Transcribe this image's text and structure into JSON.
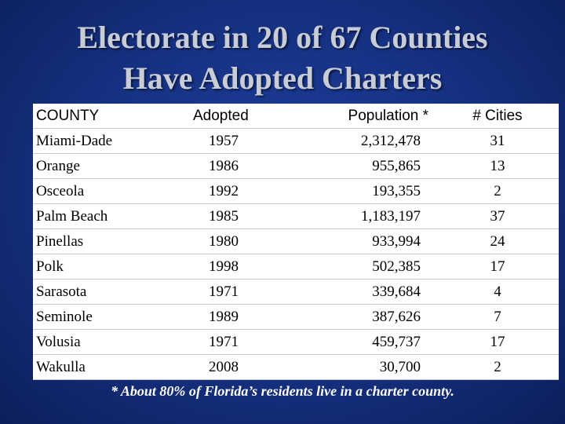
{
  "title": {
    "line1": "Electorate in 20 of 67 Counties",
    "line2": "Have Adopted Charters"
  },
  "table": {
    "headers": [
      "COUNTY",
      "Adopted",
      "Population *",
      "# Cities"
    ],
    "rows": [
      [
        "Miami-Dade",
        "1957",
        "2,312,478",
        "31"
      ],
      [
        "Orange",
        "1986",
        "955,865",
        "13"
      ],
      [
        "Osceola",
        "1992",
        "193,355",
        "2"
      ],
      [
        "Palm Beach",
        "1985",
        "1,183,197",
        "37"
      ],
      [
        "Pinellas",
        "1980",
        "933,994",
        "24"
      ],
      [
        "Polk",
        "1998",
        "502,385",
        "17"
      ],
      [
        "Sarasota",
        "1971",
        "339,684",
        "4"
      ],
      [
        "Seminole",
        "1989",
        "387,626",
        "7"
      ],
      [
        "Volusia",
        "1971",
        "459,737",
        "17"
      ],
      [
        "Wakulla",
        "2008",
        "30,700",
        "2"
      ]
    ]
  },
  "footnote": "*  About 80% of Florida’s residents live in a charter county.",
  "colors": {
    "background": "#15307f",
    "title": "#c8ccd6",
    "table_bg": "#ffffff"
  }
}
